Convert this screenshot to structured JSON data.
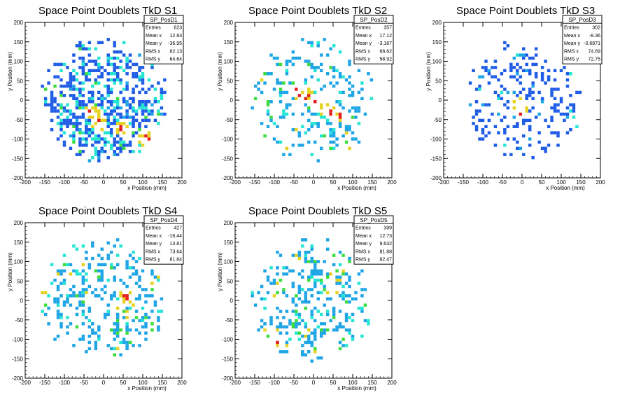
{
  "chart_data": [
    {
      "type": "heatmap",
      "title": "Space Point Doublets TkD S1",
      "xlabel": "x Position (mm)",
      "ylabel": "y Position (mm)",
      "xlim": [
        -200,
        200
      ],
      "ylim": [
        -200,
        200
      ],
      "xticks": [
        -200,
        -150,
        -100,
        -50,
        0,
        50,
        100,
        150,
        200
      ],
      "yticks": [
        -200,
        -150,
        -100,
        -50,
        0,
        50,
        100,
        150,
        200
      ],
      "stats": {
        "name": "SP_PosD1",
        "rows": [
          {
            "label": "Entries",
            "value": "623"
          },
          {
            "label": "Mean x",
            "value": "12.83"
          },
          {
            "label": "Mean y",
            "value": "-36.95"
          },
          {
            "label": "RMS x",
            "value": "82.13"
          },
          {
            "label": "RMS y",
            "value": "64.64"
          }
        ]
      },
      "hotspots": [
        [
          -10,
          -60
        ],
        [
          50,
          -70
        ],
        [
          110,
          -100
        ],
        [
          -30,
          -30
        ]
      ],
      "distribution": {
        "cx": 10,
        "cy": -20,
        "sx": 80,
        "sy": 70,
        "radius": 165,
        "seed": 11,
        "density": 0.42,
        "bias_y": -30
      }
    },
    {
      "type": "heatmap",
      "title": "Space Point Doublets TkD S2",
      "xlabel": "x Position (mm)",
      "ylabel": "y Position (mm)",
      "xlim": [
        -200,
        200
      ],
      "ylim": [
        -200,
        200
      ],
      "xticks": [
        -200,
        -150,
        -100,
        -50,
        0,
        50,
        100,
        150,
        200
      ],
      "yticks": [
        -200,
        -150,
        -100,
        -50,
        0,
        50,
        100,
        150,
        200
      ],
      "stats": {
        "name": "SP_PosD2",
        "rows": [
          {
            "label": "Entries",
            "value": "357"
          },
          {
            "label": "Mean x",
            "value": "17.12"
          },
          {
            "label": "Mean y",
            "value": "-3.167"
          },
          {
            "label": "RMS x",
            "value": "68.62"
          },
          {
            "label": "RMS y",
            "value": "58.92"
          }
        ]
      },
      "hotspots": [
        [
          -40,
          20
        ],
        [
          -20,
          10
        ],
        [
          10,
          0
        ],
        [
          30,
          -20
        ],
        [
          50,
          -30
        ],
        [
          70,
          -40
        ]
      ],
      "distribution": {
        "cx": 15,
        "cy": -5,
        "sx": 70,
        "sy": 60,
        "radius": 165,
        "seed": 23,
        "density": 0.22,
        "bias_y": 0
      }
    },
    {
      "type": "heatmap",
      "title": "Space Point Doublets TkD S3",
      "xlabel": "x Position (mm)",
      "ylabel": "y Position (mm)",
      "xlim": [
        -200,
        200
      ],
      "ylim": [
        -200,
        200
      ],
      "xticks": [
        -200,
        -150,
        -100,
        -50,
        0,
        50,
        100,
        150,
        200
      ],
      "yticks": [
        -200,
        -150,
        -100,
        -50,
        0,
        50,
        100,
        150,
        200
      ],
      "stats": {
        "name": "SP_PosD3",
        "rows": [
          {
            "label": "Entries",
            "value": "302"
          },
          {
            "label": "Mean x",
            "value": "-8.36"
          },
          {
            "label": "Mean y",
            "value": "-0.6871"
          },
          {
            "label": "RMS x",
            "value": "74.69"
          },
          {
            "label": "RMS y",
            "value": "72.75"
          }
        ]
      },
      "hotspots": [
        [
          -10,
          -10
        ],
        [
          0,
          -30
        ]
      ],
      "distribution": {
        "cx": -5,
        "cy": 0,
        "sx": 75,
        "sy": 72,
        "radius": 160,
        "seed": 37,
        "density": 0.22,
        "bias_y": 0
      }
    },
    {
      "type": "heatmap",
      "title": "Space Point Doublets TkD S4",
      "xlabel": "x Position (mm)",
      "ylabel": "y Position (mm)",
      "xlim": [
        -200,
        200
      ],
      "ylim": [
        -200,
        200
      ],
      "xticks": [
        -200,
        -150,
        -100,
        -50,
        0,
        50,
        100,
        150,
        200
      ],
      "yticks": [
        -200,
        -150,
        -100,
        -50,
        0,
        50,
        100,
        150,
        200
      ],
      "stats": {
        "name": "SP_PosD4",
        "rows": [
          {
            "label": "Entries",
            "value": "427"
          },
          {
            "label": "Mean x",
            "value": "-16.44"
          },
          {
            "label": "Mean y",
            "value": "13.81"
          },
          {
            "label": "RMS x",
            "value": "73.64"
          },
          {
            "label": "RMS y",
            "value": "81.84"
          }
        ]
      },
      "hotspots": [
        [
          -160,
          30
        ],
        [
          60,
          10
        ]
      ],
      "distribution": {
        "cx": -15,
        "cy": 15,
        "sx": 75,
        "sy": 80,
        "radius": 165,
        "seed": 53,
        "density": 0.3,
        "bias_y": 0
      }
    },
    {
      "type": "heatmap",
      "title": "Space Point Doublets TkD S5",
      "xlabel": "x Position (mm)",
      "ylabel": "y Position (mm)",
      "xlim": [
        -200,
        200
      ],
      "ylim": [
        -200,
        200
      ],
      "xticks": [
        -200,
        -150,
        -100,
        -50,
        0,
        50,
        100,
        150,
        200
      ],
      "yticks": [
        -200,
        -150,
        -100,
        -50,
        0,
        50,
        100,
        150,
        200
      ],
      "stats": {
        "name": "SP_PosD5",
        "rows": [
          {
            "label": "Entries",
            "value": "399"
          },
          {
            "label": "Mean x",
            "value": "12.73"
          },
          {
            "label": "Mean y",
            "value": "9.632"
          },
          {
            "label": "RMS x",
            "value": "81.88"
          },
          {
            "label": "RMS y",
            "value": "82.47"
          }
        ]
      },
      "hotspots": [
        [
          -100,
          -110
        ]
      ],
      "distribution": {
        "cx": 12,
        "cy": 10,
        "sx": 80,
        "sy": 82,
        "radius": 165,
        "seed": 71,
        "density": 0.28,
        "bias_y": 0
      }
    }
  ],
  "colors": {
    "low": "#1e5be6",
    "mid_low": "#1ea5e6",
    "mid": "#23e6d2",
    "mid_high": "#3cdc3c",
    "high": "#e6d21e",
    "peak": "#e61e1e"
  }
}
